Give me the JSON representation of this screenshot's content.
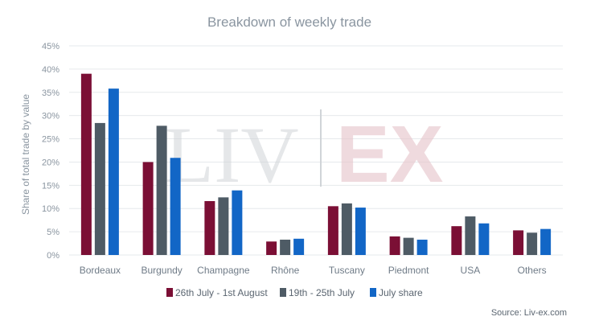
{
  "chart_data": {
    "type": "bar",
    "title": "Breakdown of weekly trade",
    "ylabel": "Share of total trade by value",
    "xlabel": "",
    "ylim": [
      0,
      45
    ],
    "yticks": [
      "0%",
      "5%",
      "10%",
      "15%",
      "20%",
      "25%",
      "30%",
      "35%",
      "40%",
      "45%"
    ],
    "grid": true,
    "legend_position": "bottom",
    "categories": [
      "Bordeaux",
      "Burgundy",
      "Champagne",
      "Rhône",
      "Tuscany",
      "Piedmont",
      "USA",
      "Others"
    ],
    "series": [
      {
        "name": "26th July - 1st August",
        "color": "#7b0f35",
        "values": [
          39,
          20,
          11.6,
          2.9,
          10.5,
          4.0,
          6.2,
          5.3
        ]
      },
      {
        "name": "19th - 25th July",
        "color": "#4e5b65",
        "values": [
          28.4,
          27.8,
          12.4,
          3.3,
          11.1,
          3.7,
          8.3,
          4.8
        ]
      },
      {
        "name": "July share",
        "color": "#1266c6",
        "values": [
          35.8,
          20.9,
          13.9,
          3.5,
          10.2,
          3.3,
          6.8,
          5.6
        ]
      }
    ],
    "source": "Source: Liv-ex.com",
    "watermark": {
      "left": "LIV",
      "right": "EX"
    }
  }
}
